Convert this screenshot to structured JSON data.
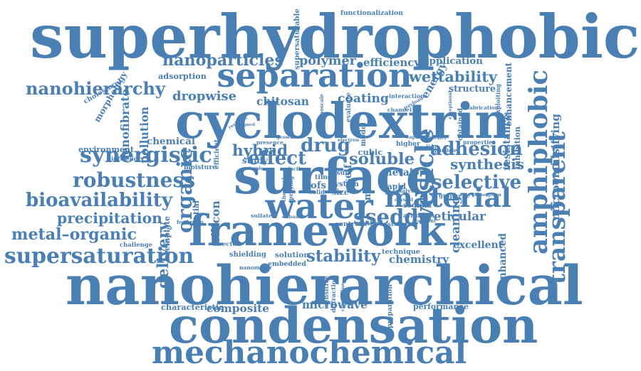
{
  "title": "",
  "color": "#4a7fb3",
  "words": [
    "superhydrophobic",
    "nanohierarchical",
    "cyclodextrin",
    "surface",
    "framework",
    "condensation",
    "mechanochemical",
    "separation",
    "water",
    "amphiphobic",
    "transparent",
    "organic",
    "synergistic",
    "robustness",
    "bioavailability",
    "precipitation",
    "metal–organic",
    "supersaturation",
    "nanohierarchy",
    "fenofibrate",
    "drug",
    "effect",
    "material",
    "stability",
    "adhesion",
    "selective",
    "synthesis",
    "soluble",
    "ssedds",
    "hybrid",
    "vesicle",
    "cleaning",
    "enhanced",
    "wettability",
    "nanoparticles",
    "polymer",
    "efficiency",
    "application",
    "functionalization",
    "supersaturable",
    "dropwise",
    "chitosan",
    "coating",
    "adsorption",
    "cholesterol",
    "morphology",
    "pollution",
    "environment",
    "chemical",
    "delivery",
    "silicon",
    "composite",
    "microwave",
    "chemistry",
    "excellent",
    "reticular",
    "resistance",
    "inhibition",
    "microemulsifying",
    "enhancement",
    "structure",
    "energy",
    "exploiting",
    "performance",
    "characteristic",
    "shielding",
    "solution",
    "embedded",
    "nanometer",
    "preparation",
    "crystalline",
    "diffraction",
    "challenge",
    "template",
    "potential",
    "directed",
    "control",
    "method",
    "assisted",
    "alumina",
    "sodium",
    "rapid",
    "metal",
    "graphene",
    "absorption",
    "properties",
    "loading",
    "higher",
    "system",
    "size",
    "cofs",
    "self",
    "mofs",
    "cubic",
    "moisture",
    "biofriendly",
    "study",
    "fabrication",
    "obtained",
    "interaction",
    "payload",
    "channel",
    "evaluate",
    "nanoscale",
    "resistant",
    "aligned",
    "presence",
    "grown",
    "efficient",
    "model",
    "capacity",
    "absence",
    "particle",
    "exceptional",
    "technique",
    "sensitive",
    "sulfate",
    "solid",
    "fenbufen",
    "simple",
    "facile",
    "time",
    "result",
    "electron",
    "enhance",
    "analysis",
    "covalent",
    "crystal",
    "thermal",
    "spraying",
    "release"
  ]
}
